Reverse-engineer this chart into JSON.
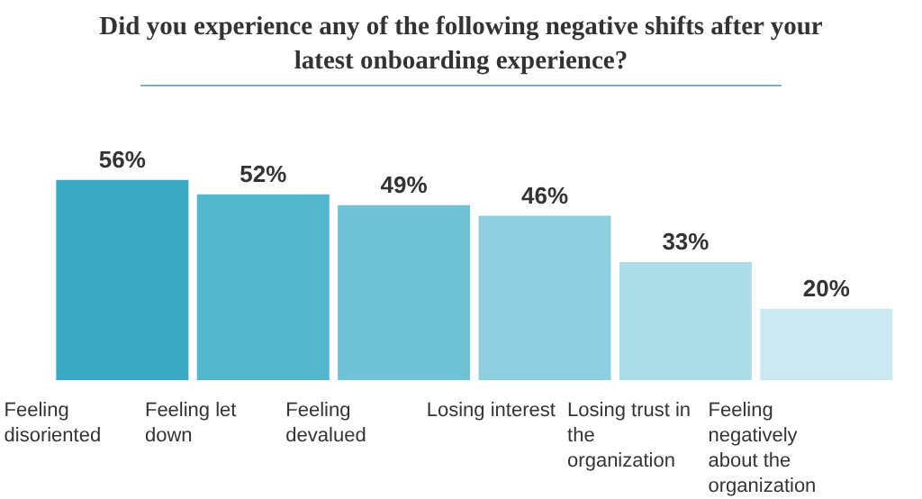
{
  "chart_data": {
    "type": "bar",
    "title": "Did you experience any of the following negative shifts after your latest onboarding experience?",
    "categories": [
      "Feeling disoriented",
      "Feeling let down",
      "Feeling devalued",
      "Losing interest",
      "Losing trust in the organization",
      "Feeling negatively about the organization"
    ],
    "values": [
      56,
      52,
      49,
      46,
      33,
      20
    ],
    "colors": [
      "#3aa9c4",
      "#55b7cd",
      "#70c3d6",
      "#8dcfde",
      "#acdce8",
      "#cbe9f1"
    ],
    "value_labels": [
      "56%",
      "52%",
      "49%",
      "46%",
      "33%",
      "20%"
    ]
  }
}
